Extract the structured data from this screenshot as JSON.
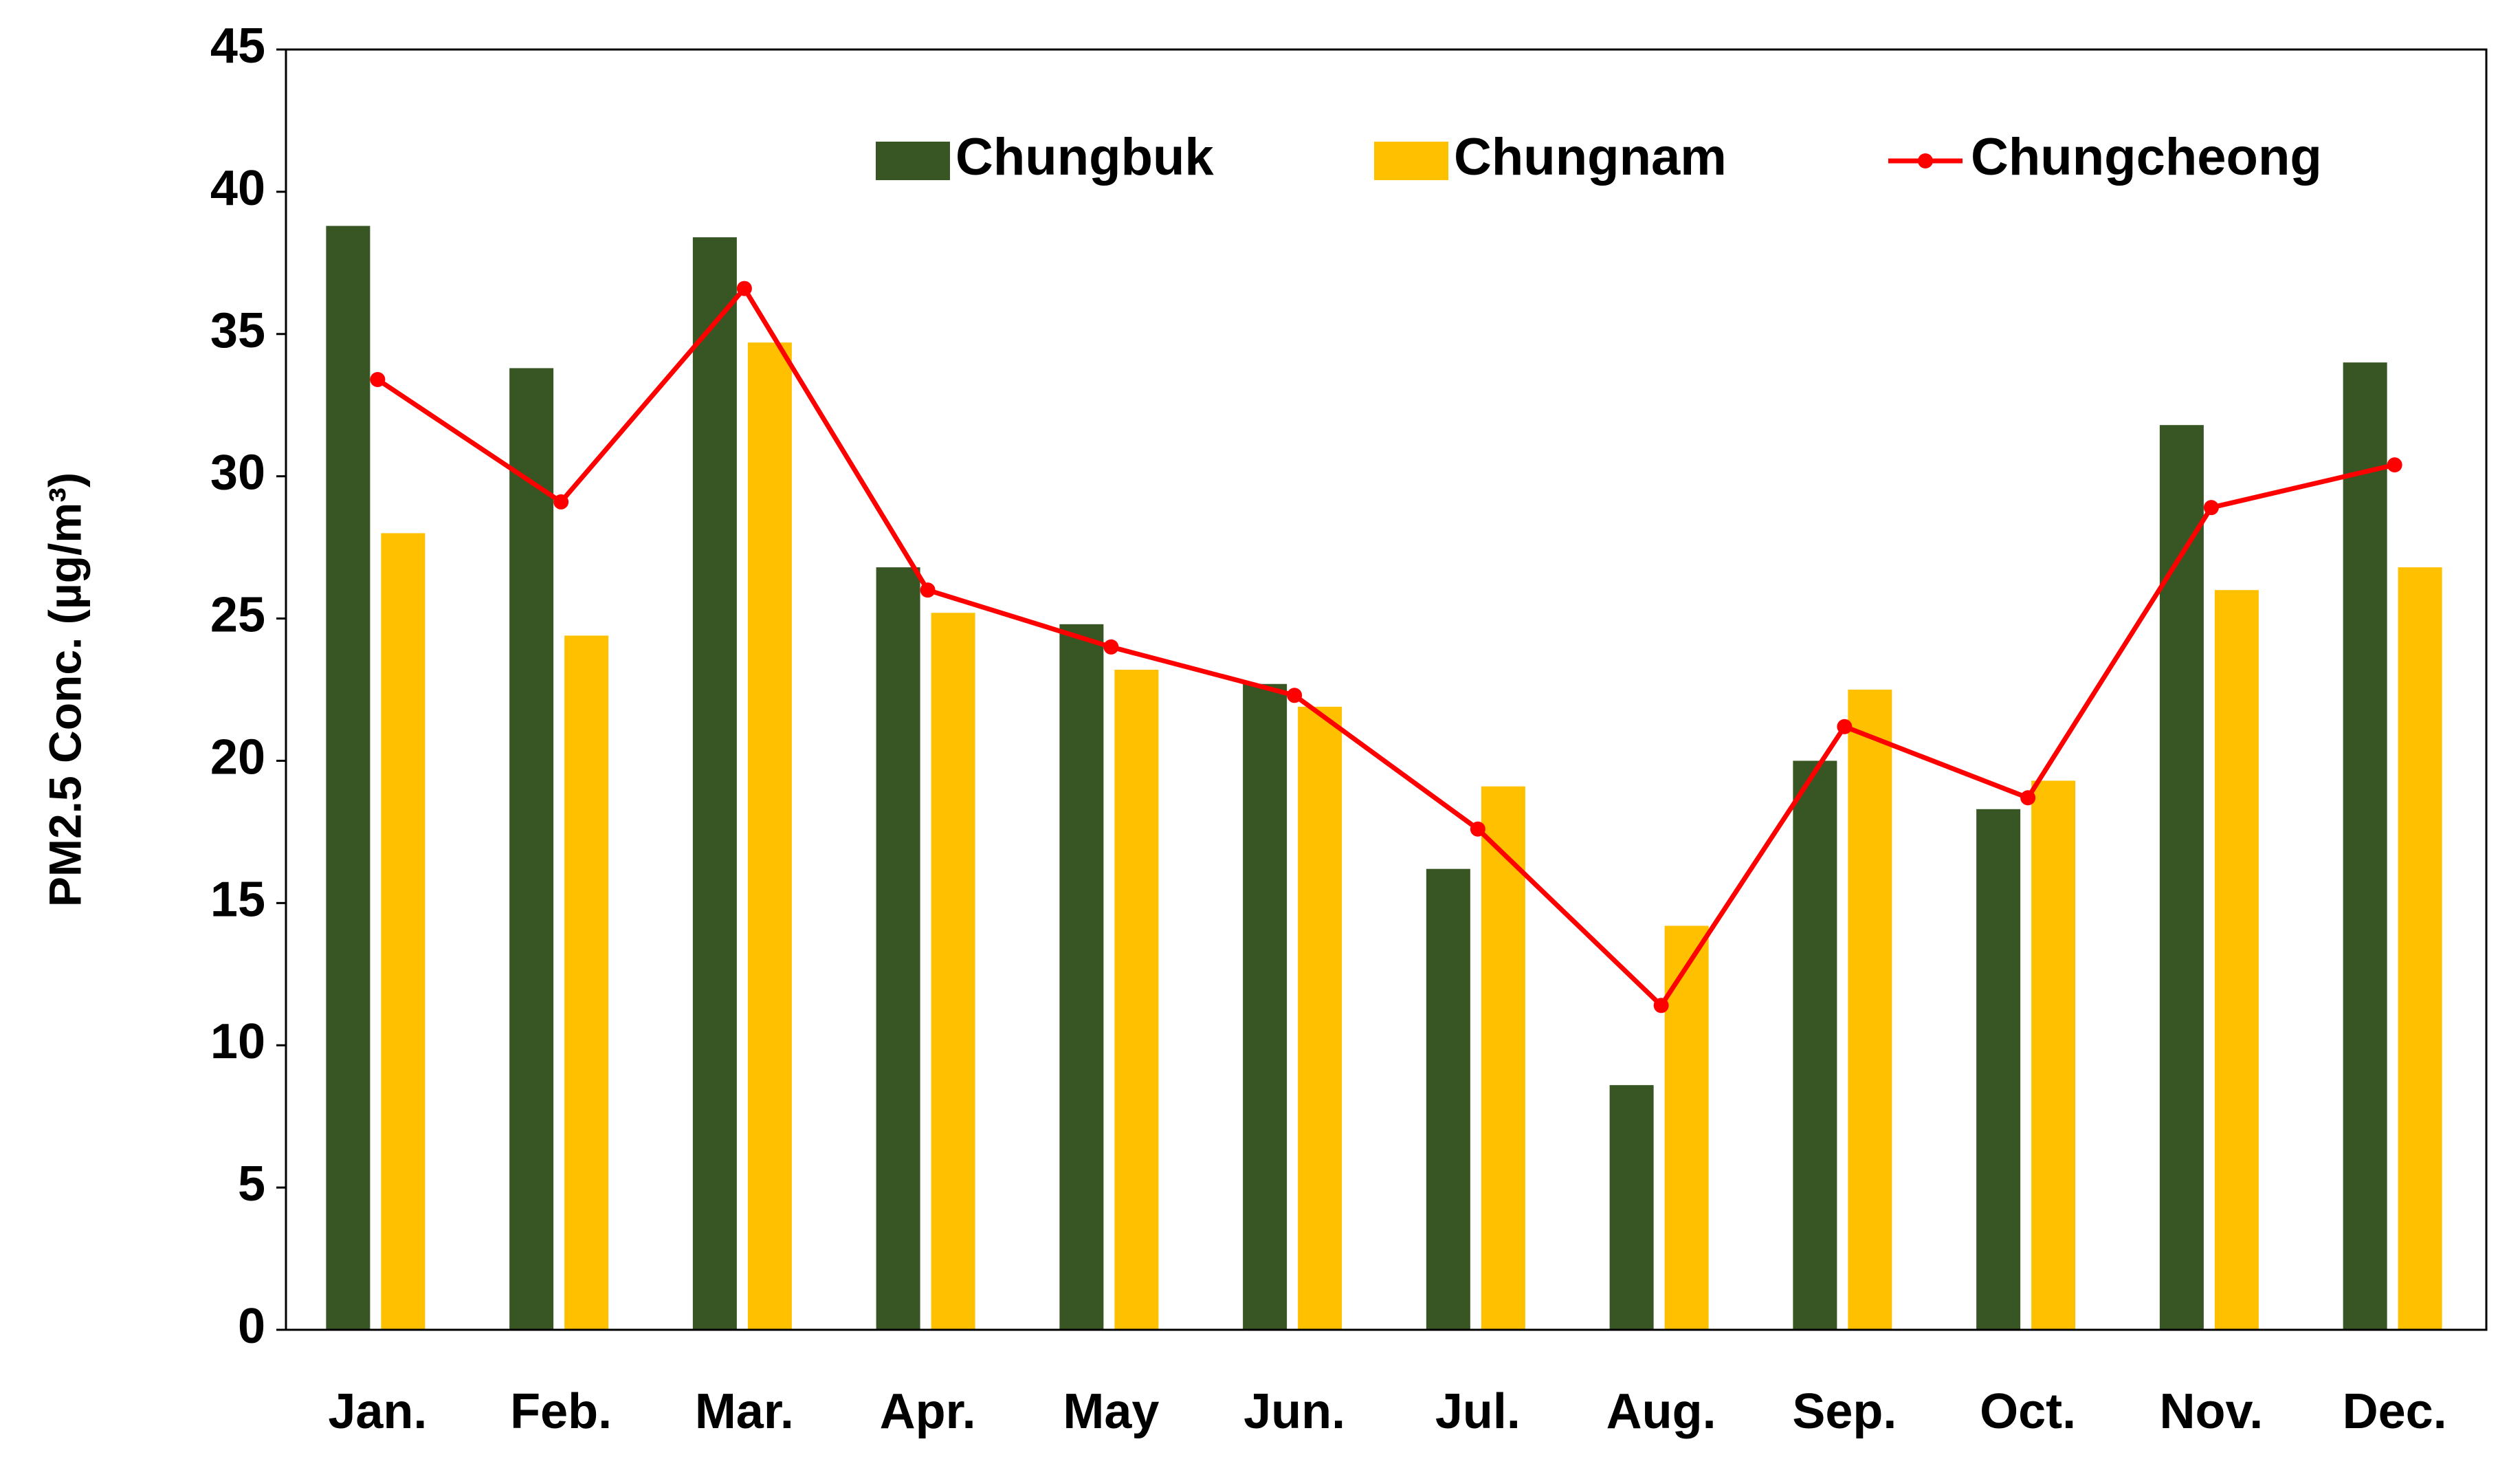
{
  "chart_data": {
    "type": "bar",
    "y_label": "PM2.5 Conc. (µg/m³)",
    "categories": [
      "Jan.",
      "Feb.",
      "Mar.",
      "Apr.",
      "May",
      "Jun.",
      "Jul.",
      "Aug.",
      "Sep.",
      "Oct.",
      "Nov.",
      "Dec."
    ],
    "series": [
      {
        "name": "Chungbuk",
        "type": "bar",
        "color": "#375623",
        "values": [
          38.8,
          33.8,
          38.4,
          26.8,
          24.8,
          22.7,
          16.2,
          8.6,
          20.0,
          18.3,
          31.8,
          34.0
        ]
      },
      {
        "name": "Chungnam",
        "type": "bar",
        "color": "#ffc000",
        "values": [
          28.0,
          24.4,
          34.7,
          25.2,
          23.2,
          21.9,
          19.1,
          14.2,
          22.5,
          19.3,
          26.0,
          26.8
        ]
      },
      {
        "name": "Chungcheong",
        "type": "line",
        "color": "#ff0000",
        "values": [
          33.4,
          29.1,
          36.6,
          26.0,
          24.0,
          22.3,
          17.6,
          11.4,
          21.2,
          18.7,
          28.9,
          30.4
        ]
      }
    ],
    "ylim": [
      0,
      45
    ],
    "yticks": [
      0,
      5,
      10,
      15,
      20,
      25,
      30,
      35,
      40,
      45
    ],
    "grid": false
  }
}
